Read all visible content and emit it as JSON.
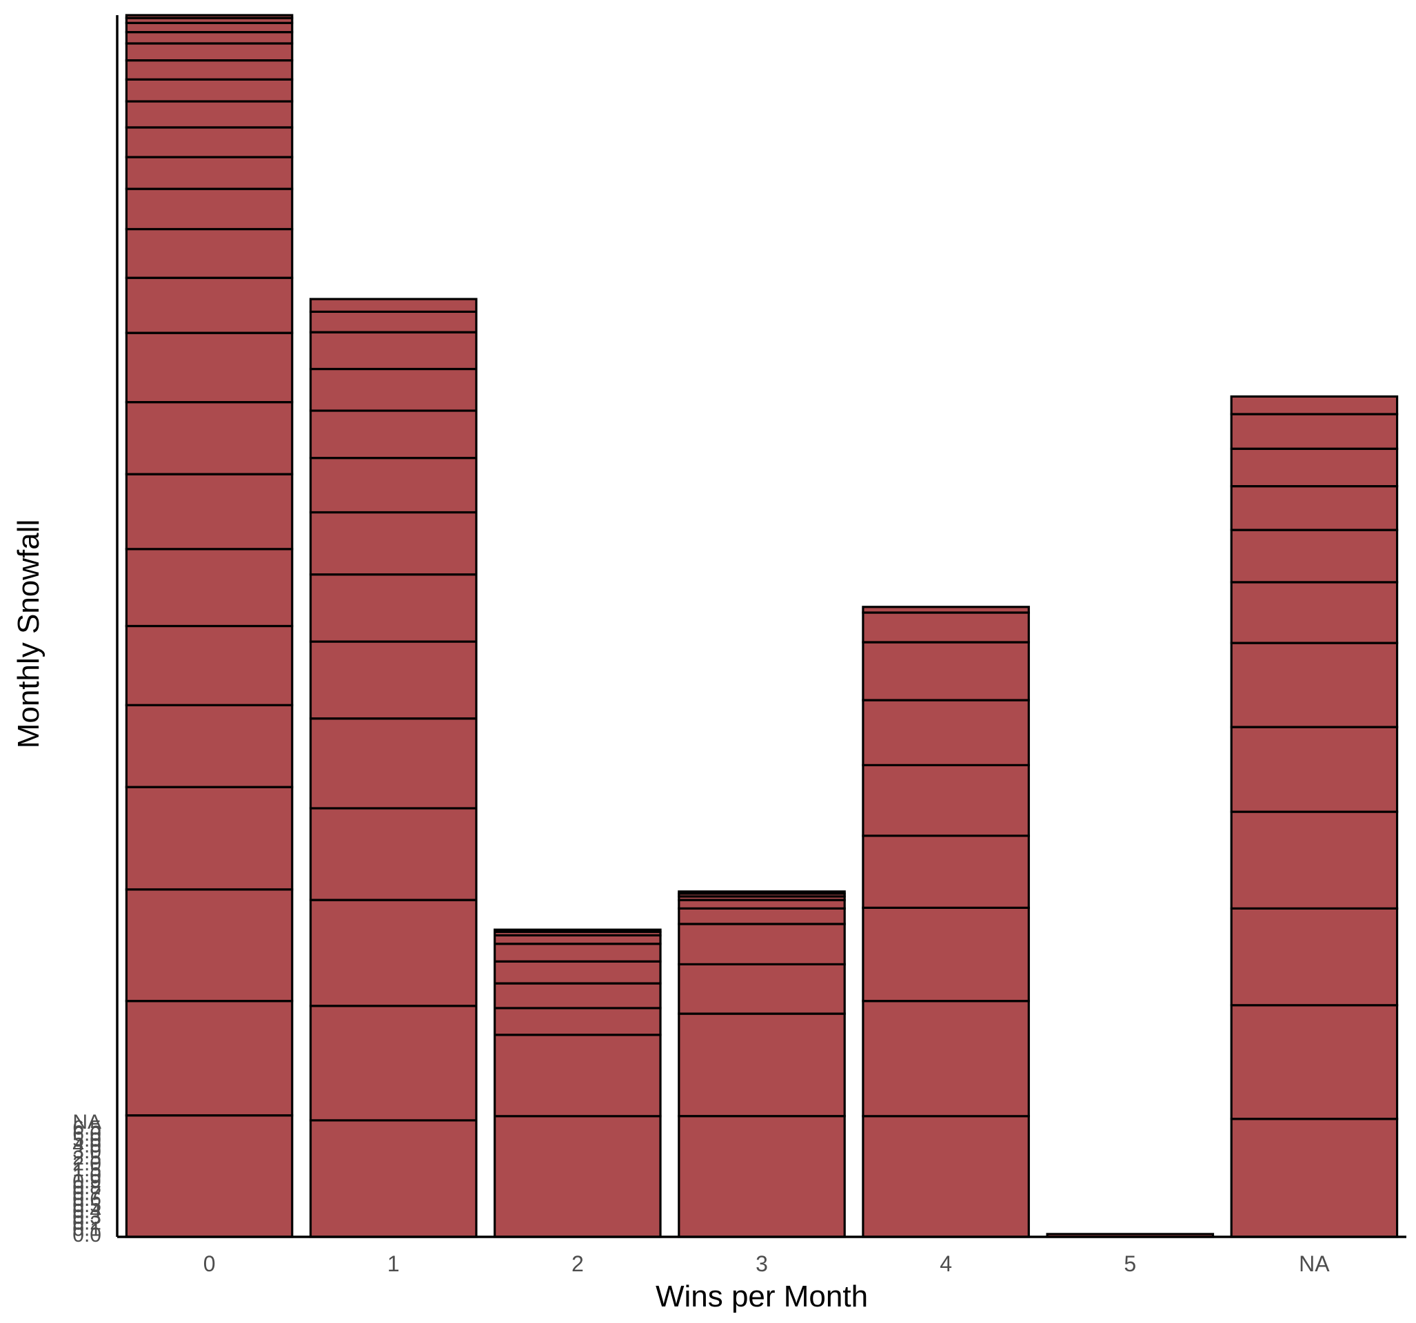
{
  "chart_data": {
    "type": "bar",
    "stacked": true,
    "xlabel": "Wins per Month",
    "ylabel": "Monthly Snowfall",
    "categories": [
      "0",
      "1",
      "2",
      "3",
      "4",
      "5",
      "NA"
    ],
    "y_tick_labels_overplotted": [
      "0.0",
      "0.1",
      "0.2",
      "0.3",
      "0.4",
      "0.5",
      "0.6",
      "0.7",
      "0.8",
      "0.9",
      "1.0",
      "1.5",
      "2.0",
      "2.5",
      "3.0",
      "4.0",
      "5.0",
      "6.0",
      "6.5",
      "NA"
    ],
    "stacks": [
      {
        "category": "0",
        "segments": [
          172,
          162,
          158,
          145,
          116,
          112,
          109,
          106,
          102,
          98,
          78,
          69,
          57,
          45,
          42,
          37,
          31,
          27,
          24,
          16,
          13,
          7,
          4
        ]
      },
      {
        "category": "1",
        "segments": [
          165,
          162,
          150,
          130,
          127,
          109,
          95,
          88,
          77,
          67,
          59,
          52,
          29,
          18
        ]
      },
      {
        "category": "2",
        "segments": [
          171,
          115,
          38,
          35,
          31,
          25,
          12,
          5,
          3
        ]
      },
      {
        "category": "3",
        "segments": [
          171,
          145,
          70,
          57,
          22,
          12,
          5,
          4,
          3
        ]
      },
      {
        "category": "4",
        "segments": [
          171,
          163,
          132,
          102,
          100,
          92,
          82,
          42,
          8
        ]
      },
      {
        "category": "5",
        "segments": [
          4
        ]
      },
      {
        "category": "NA",
        "segments": [
          167,
          161,
          137,
          137,
          120,
          119,
          86,
          74,
          62,
          53,
          49,
          25
        ]
      }
    ],
    "colors": {
      "bar_fill": "#ac4b4e",
      "bar_outline": "#000000",
      "axis": "#000000",
      "tick_text": "#4d4d4d"
    },
    "grid": false,
    "legend": "none"
  }
}
